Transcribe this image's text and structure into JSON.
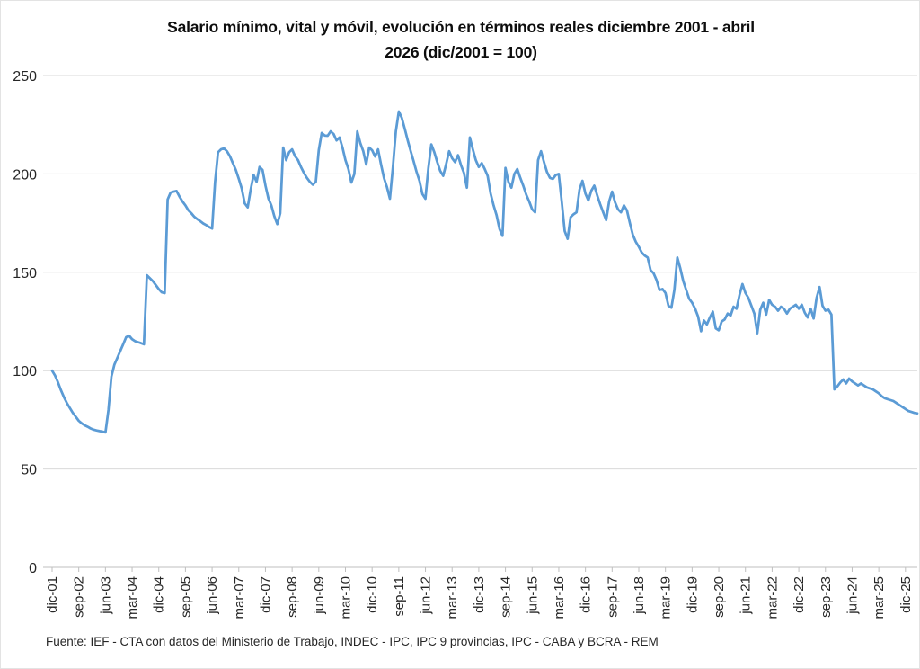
{
  "title": "Salario mínimo, vital y móvil, evolución en términos reales diciembre 2001 - abril 2026 (dic/2001 = 100)",
  "title_lines": [
    "Salario mínimo, vital y móvil, evolución en términos reales diciembre 2001 - abril",
    "2026 (dic/2001 = 100)"
  ],
  "source": "Fuente: IEF - CTA con datos del Ministerio de Trabajo, INDEC - IPC, IPC 9 provincias, IPC - CABA y BCRA - REM",
  "colors": {
    "line": "#5B9BD5",
    "gridline": "#d9d9d9",
    "axis": "#bfbfbf",
    "text": "#262626"
  },
  "chart_data": {
    "type": "line",
    "title": "Salario mínimo, vital y móvil, evolución en términos reales diciembre 2001 - abril 2026 (dic/2001 = 100)",
    "x_frequency": "monthly",
    "x_start_label": "dic-01",
    "x_end_label": "abr-26",
    "x_tick_every": 9,
    "x_tick_labels": [
      "dic-01",
      "sep-02",
      "jun-03",
      "mar-04",
      "dic-04",
      "sep-05",
      "jun-06",
      "mar-07",
      "dic-07",
      "sep-08",
      "jun-09",
      "mar-10",
      "dic-10",
      "sep-11",
      "jun-12",
      "mar-13",
      "dic-13",
      "sep-14",
      "jun-15",
      "mar-16",
      "dic-16",
      "sep-17",
      "jun-18",
      "mar-19",
      "dic-19",
      "sep-20",
      "jun-21",
      "mar-22",
      "dic-22",
      "sep-23",
      "jun-24",
      "mar-25",
      "dic-25"
    ],
    "y_ticks": [
      0,
      50,
      100,
      150,
      200,
      250
    ],
    "ylim": [
      0,
      250
    ],
    "grid": "horizontal",
    "legend": "none",
    "values": [
      100,
      97.5,
      94,
      90,
      86.5,
      83.5,
      81,
      78.5,
      76.5,
      74.5,
      73.2,
      72.2,
      71.5,
      70.6,
      70,
      69.6,
      69.3,
      69,
      68.6,
      80,
      97,
      103,
      106.5,
      110,
      113.5,
      117,
      117.8,
      116,
      115,
      114.5,
      114,
      113.4,
      148.5,
      147,
      145.5,
      143.5,
      141.5,
      139.8,
      139.4,
      187,
      190.5,
      191,
      191.3,
      188.5,
      186,
      184,
      181.5,
      180,
      178.2,
      177,
      176,
      174.8,
      174,
      173,
      172.2,
      196,
      211,
      212.5,
      213,
      211.5,
      209,
      205.5,
      202,
      197.5,
      192.5,
      185,
      183,
      192,
      199.5,
      196,
      203.5,
      202,
      194,
      187.5,
      184,
      178.5,
      174.5,
      180,
      213.4,
      207,
      211,
      212.5,
      209,
      207,
      203.5,
      200.5,
      198,
      196,
      194.5,
      196,
      212,
      220.8,
      219.5,
      219.4,
      221.6,
      220.3,
      217,
      218.5,
      213.4,
      207,
      202.5,
      195.6,
      200,
      221.6,
      215.7,
      211.6,
      204.8,
      213.4,
      212,
      208.8,
      212.5,
      204.8,
      197.9,
      193.3,
      187.4,
      203.4,
      221.6,
      231.7,
      228.5,
      223,
      217.1,
      211.6,
      206.6,
      201.1,
      196.5,
      189.7,
      187.4,
      203,
      215,
      211,
      206,
      201.5,
      199,
      205,
      211.5,
      208,
      206,
      209.5,
      204.5,
      200.5,
      193,
      218.5,
      212.5,
      207,
      203.5,
      205.5,
      202.5,
      199,
      190,
      184,
      179,
      172,
      168.5,
      203,
      196,
      193,
      200,
      202.5,
      198,
      194,
      189.5,
      186,
      182,
      180.5,
      207,
      211.5,
      206,
      201,
      198,
      197.5,
      199.5,
      200,
      186,
      171,
      167,
      178,
      179.5,
      180.5,
      192,
      196.5,
      190,
      186.5,
      191.5,
      194,
      189,
      184.5,
      180.5,
      176.5,
      186,
      191,
      185.5,
      182,
      180.5,
      184,
      181.5,
      175,
      169,
      165.5,
      163,
      160,
      158.5,
      157.5,
      151,
      149.5,
      146,
      141,
      141.5,
      139.5,
      133,
      132,
      141,
      157.5,
      152,
      145.5,
      141,
      136.5,
      134.5,
      131.5,
      127.5,
      120,
      125.5,
      123.5,
      127,
      130,
      121.5,
      120.5,
      125,
      126,
      129,
      128,
      132.5,
      131.5,
      138.5,
      144,
      139.5,
      137,
      133,
      129,
      119,
      131,
      134.5,
      128.5,
      136,
      133.5,
      132.5,
      130.5,
      132.5,
      131.5,
      129,
      131.5,
      132.5,
      133.5,
      131.5,
      133.5,
      129.5,
      127,
      131.5,
      126.5,
      137,
      142.5,
      133,
      130.5,
      131,
      128.5,
      90.5,
      92,
      94,
      95.5,
      93.5,
      96,
      94.5,
      93.5,
      92.5,
      93.5,
      92.5,
      91.5,
      91,
      90.5,
      89.5,
      88.5,
      87,
      86,
      85.5,
      85,
      84.5,
      83.5,
      82.5,
      81.5,
      80.5,
      79.5,
      79,
      78.5,
      78.3
    ]
  }
}
